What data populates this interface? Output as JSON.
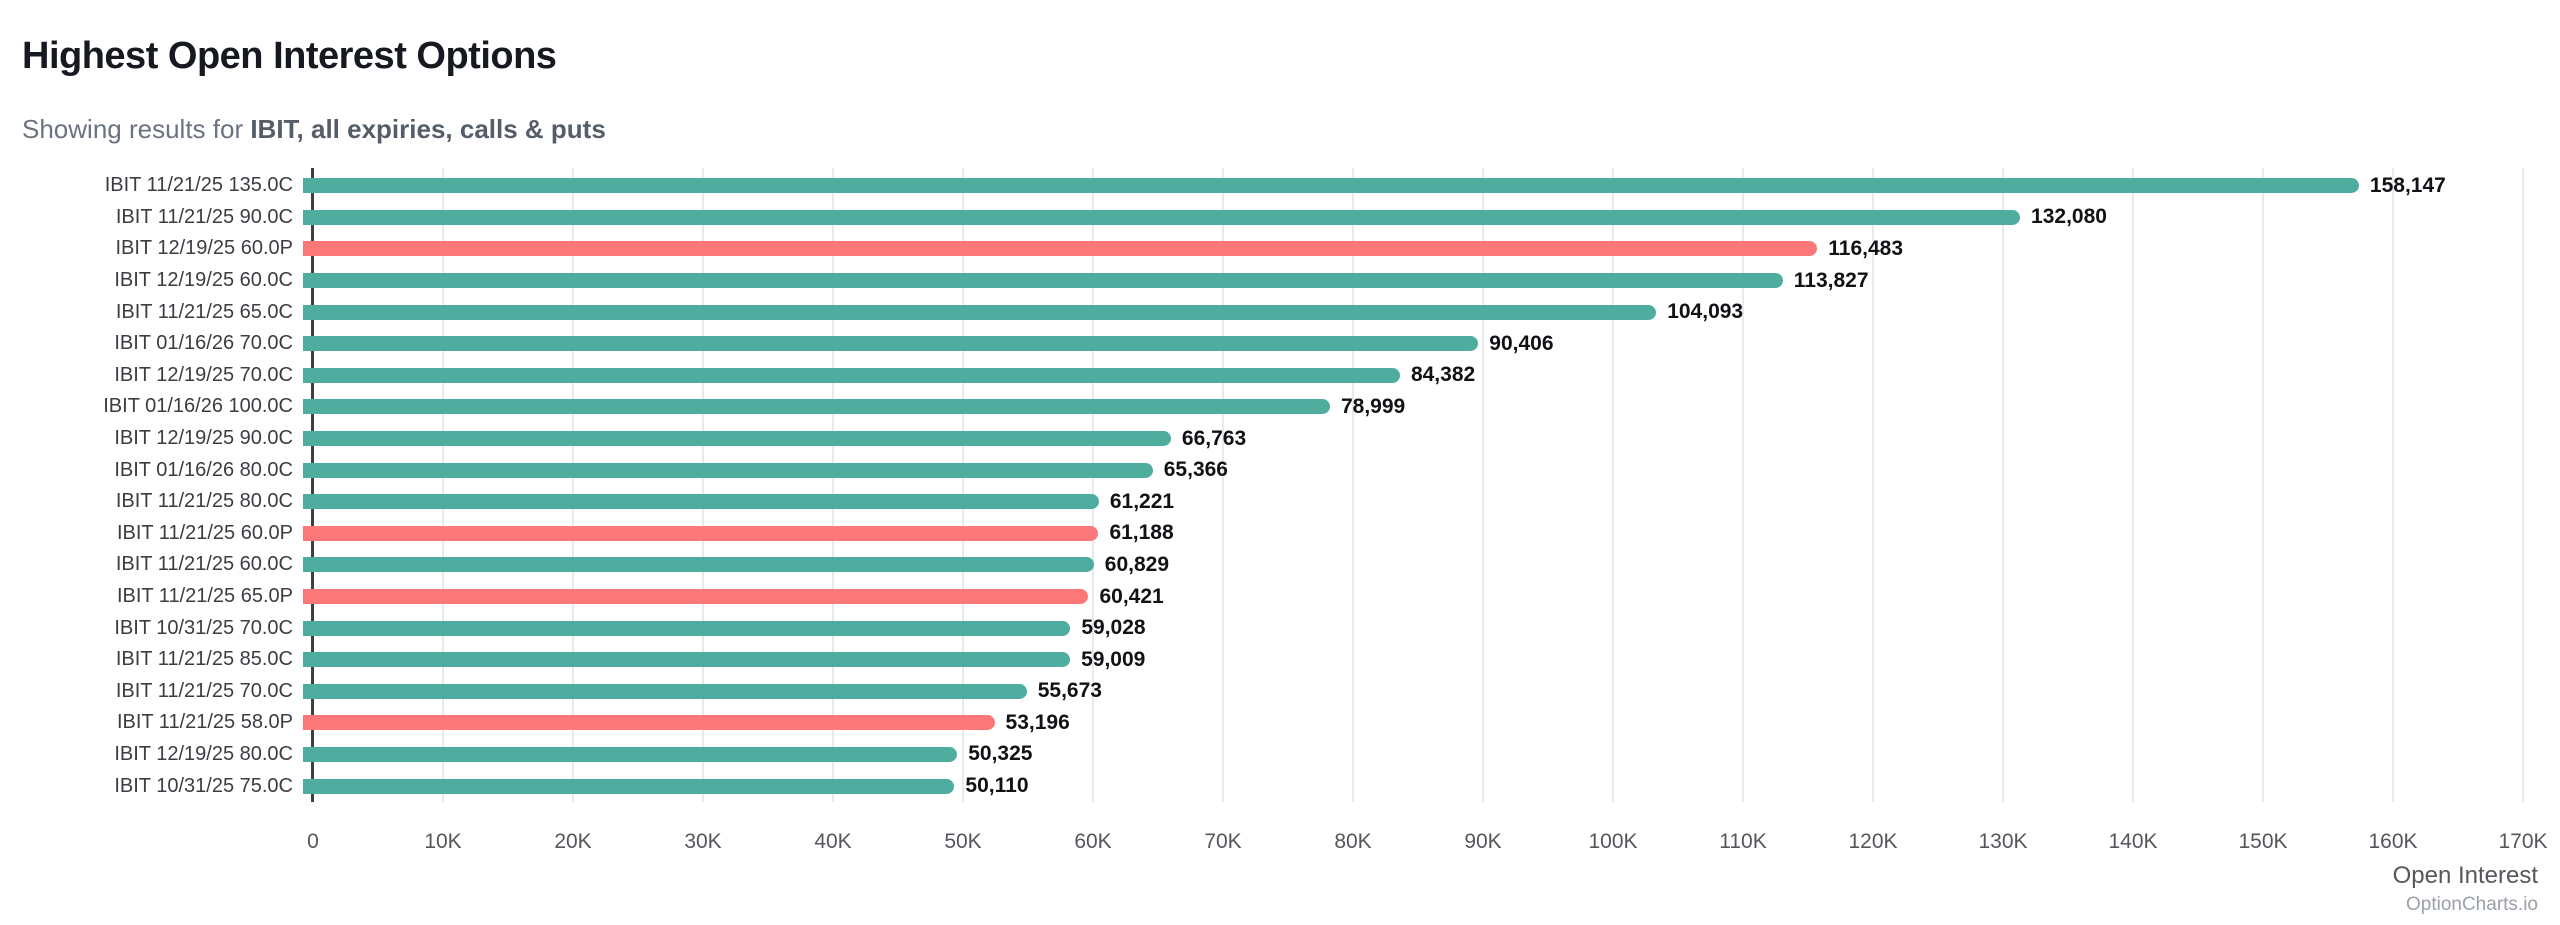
{
  "header": {
    "title": "Highest Open Interest Options",
    "subtitle_prefix": "Showing results for ",
    "subtitle_filter": "IBIT, all expiries, calls & puts"
  },
  "footer": {
    "axis_label": "Open Interest",
    "watermark": "OptionCharts.io"
  },
  "colors": {
    "call_bar": "#4fada0",
    "put_bar": "#fc7878",
    "gridline": "#e8e9eb",
    "axis_line": "#3d4043",
    "title_text": "#16191f",
    "subtitle_text": "#6b7280",
    "value_text": "#101215"
  },
  "chart_data": {
    "type": "bar",
    "orientation": "horizontal",
    "title": "Highest Open Interest Options",
    "xlabel": "Open Interest",
    "ylabel": "",
    "xlim": [
      0,
      170000
    ],
    "tick_step": 10000,
    "x_tick_labels": [
      "0",
      "10K",
      "20K",
      "30K",
      "40K",
      "50K",
      "60K",
      "70K",
      "80K",
      "90K",
      "100K",
      "110K",
      "120K",
      "130K",
      "140K",
      "150K",
      "160K",
      "170K"
    ],
    "grid": true,
    "legend_position": "none",
    "series_colors": {
      "call": "#4fada0",
      "put": "#fc7878"
    },
    "bars": [
      {
        "label": "IBIT 11/21/25 135.0C",
        "value": 158147,
        "value_display": "158,147",
        "side": "call"
      },
      {
        "label": "IBIT 11/21/25 90.0C",
        "value": 132080,
        "value_display": "132,080",
        "side": "call"
      },
      {
        "label": "IBIT 12/19/25 60.0P",
        "value": 116483,
        "value_display": "116,483",
        "side": "put"
      },
      {
        "label": "IBIT 12/19/25 60.0C",
        "value": 113827,
        "value_display": "113,827",
        "side": "call"
      },
      {
        "label": "IBIT 11/21/25 65.0C",
        "value": 104093,
        "value_display": "104,093",
        "side": "call"
      },
      {
        "label": "IBIT 01/16/26 70.0C",
        "value": 90406,
        "value_display": "90,406",
        "side": "call"
      },
      {
        "label": "IBIT 12/19/25 70.0C",
        "value": 84382,
        "value_display": "84,382",
        "side": "call"
      },
      {
        "label": "IBIT 01/16/26 100.0C",
        "value": 78999,
        "value_display": "78,999",
        "side": "call"
      },
      {
        "label": "IBIT 12/19/25 90.0C",
        "value": 66763,
        "value_display": "66,763",
        "side": "call"
      },
      {
        "label": "IBIT 01/16/26 80.0C",
        "value": 65366,
        "value_display": "65,366",
        "side": "call"
      },
      {
        "label": "IBIT 11/21/25 80.0C",
        "value": 61221,
        "value_display": "61,221",
        "side": "call"
      },
      {
        "label": "IBIT 11/21/25 60.0P",
        "value": 61188,
        "value_display": "61,188",
        "side": "put"
      },
      {
        "label": "IBIT 11/21/25 60.0C",
        "value": 60829,
        "value_display": "60,829",
        "side": "call"
      },
      {
        "label": "IBIT 11/21/25 65.0P",
        "value": 60421,
        "value_display": "60,421",
        "side": "put"
      },
      {
        "label": "IBIT 10/31/25 70.0C",
        "value": 59028,
        "value_display": "59,028",
        "side": "call"
      },
      {
        "label": "IBIT 11/21/25 85.0C",
        "value": 59009,
        "value_display": "59,009",
        "side": "call"
      },
      {
        "label": "IBIT 11/21/25 70.0C",
        "value": 55673,
        "value_display": "55,673",
        "side": "call"
      },
      {
        "label": "IBIT 11/21/25 58.0P",
        "value": 53196,
        "value_display": "53,196",
        "side": "put"
      },
      {
        "label": "IBIT 12/19/25 80.0C",
        "value": 50325,
        "value_display": "50,325",
        "side": "call"
      },
      {
        "label": "IBIT 10/31/25 75.0C",
        "value": 50110,
        "value_display": "50,110",
        "side": "call"
      }
    ]
  }
}
